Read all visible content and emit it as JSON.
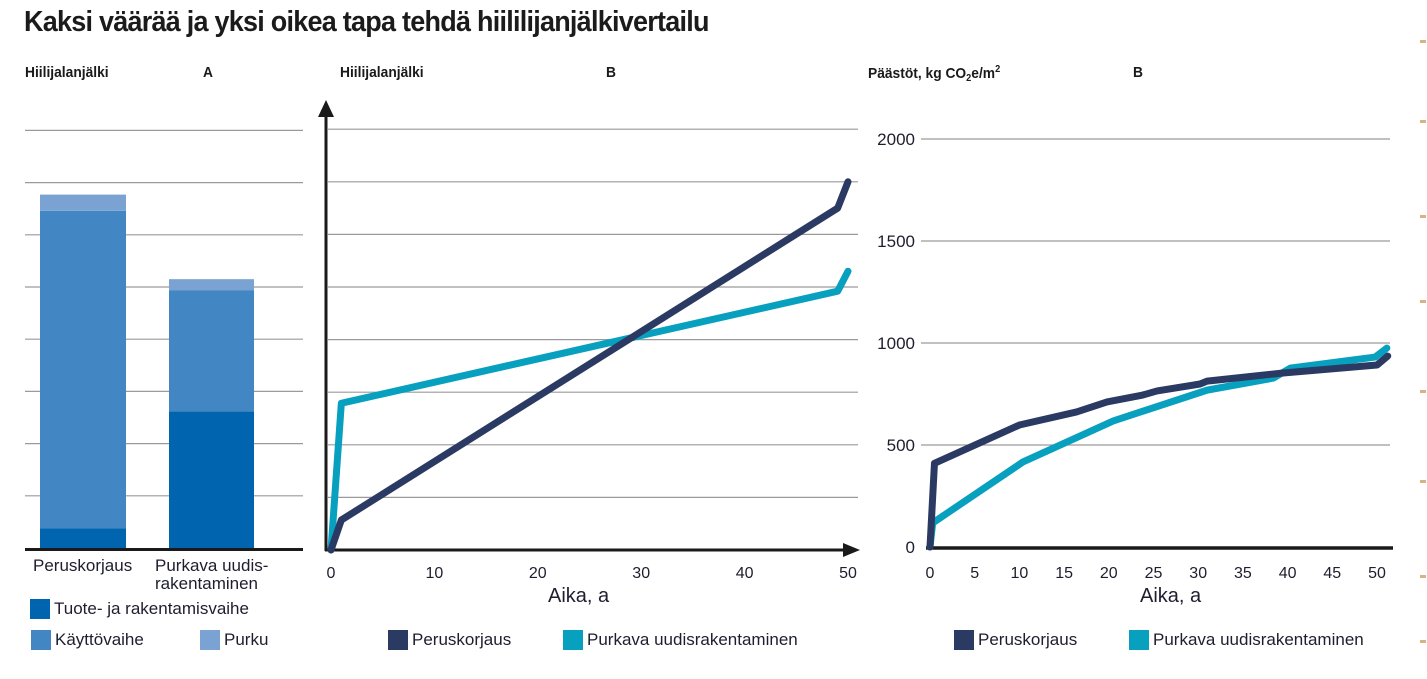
{
  "title": "Kaksi väärää ja yksi oikea tapa tehdä hiililijanjälkivertailu",
  "colors": {
    "tuote": "#0065ae",
    "kaytto": "#4287c3",
    "purku": "#7aa3d3",
    "peruskorjaus": "#2b3a63",
    "purkava": "#08a0bf",
    "grid": "#9a9a9a",
    "axis": "#1a1a1a"
  },
  "chart_data": [
    {
      "type": "bar",
      "stacked": true,
      "title": "Hiilijalanjälki",
      "panel": "A",
      "ylabel": "Hiilijalanjälki",
      "categories": [
        "Peruskorjaus",
        "Purkava uudis-rakentaminen"
      ],
      "category_lines": [
        [
          "Peruskorjaus"
        ],
        [
          "Purkava uudis-",
          "rakentaminen"
        ]
      ],
      "series": [
        {
          "name": "Tuote- ja rakentamisvaihe",
          "color_key": "tuote",
          "values": [
            0.38,
            2.62
          ]
        },
        {
          "name": "Käyttövaihe",
          "color_key": "kaytto",
          "values": [
            6.08,
            2.32
          ]
        },
        {
          "name": "Purku",
          "color_key": "purku",
          "values": [
            0.31,
            0.21
          ]
        }
      ],
      "ylim": [
        0,
        8
      ],
      "grid": true,
      "y_ticks_labeled": false,
      "legend": [
        "Tuote- ja rakentamisvaihe",
        "Käyttövaihe",
        "Purku"
      ],
      "legend_position": "bottom"
    },
    {
      "type": "line",
      "title": "Hiilijalanjälki",
      "panel": "B",
      "ylabel": "Hiilijalanjälki",
      "xlabel": "Aika, a",
      "xlim": [
        0,
        50
      ],
      "ylim": [
        0,
        8
      ],
      "x_ticks": [
        "0",
        "10",
        "20",
        "30",
        "40",
        "50"
      ],
      "y_ticks_labeled": false,
      "grid": true,
      "series": [
        {
          "name": "Peruskorjaus",
          "color_key": "peruskorjaus",
          "x": [
            0,
            1,
            49,
            50
          ],
          "y": [
            0,
            0.57,
            6.5,
            7.0
          ]
        },
        {
          "name": "Purkava uudisrakentaminen",
          "color_key": "purkava",
          "x": [
            0,
            1,
            49,
            50
          ],
          "y": [
            0,
            2.79,
            4.92,
            5.3
          ]
        }
      ],
      "legend_position": "bottom"
    },
    {
      "type": "line",
      "title": "Päästöt, kg CO2e/m2",
      "title_parts": {
        "pre": "Päästöt, kg CO",
        "sub": "2",
        "mid": "e/m",
        "sup": "2"
      },
      "panel": "B",
      "xlabel": "Aika, a",
      "xlim": [
        0,
        51
      ],
      "ylim": [
        0,
        2000
      ],
      "x_ticks": [
        "0",
        "5",
        "10",
        "15",
        "20",
        "25",
        "30",
        "35",
        "40",
        "45",
        "50"
      ],
      "y_ticks": [
        "0",
        "500",
        "1000",
        "1500",
        "2000"
      ],
      "grid": true,
      "series": [
        {
          "name": "Peruskorjaus",
          "color_key": "peruskorjaus",
          "x": [
            0,
            0.5,
            10,
            16.4,
            19.8,
            23.8,
            25.4,
            30.2,
            31,
            39.5,
            50,
            51.2
          ],
          "y": [
            0,
            410,
            598,
            662,
            711,
            745,
            765,
            799,
            813,
            853,
            892,
            936
          ]
        },
        {
          "name": "Purkava uudisrakentaminen",
          "color_key": "purkava",
          "x": [
            0,
            0.3,
            10.4,
            20.5,
            31,
            38.4,
            40.3,
            49.8,
            51.1
          ],
          "y": [
            0,
            118,
            417,
            618,
            769,
            828,
            877,
            931,
            975
          ]
        }
      ],
      "legend_position": "bottom"
    }
  ]
}
